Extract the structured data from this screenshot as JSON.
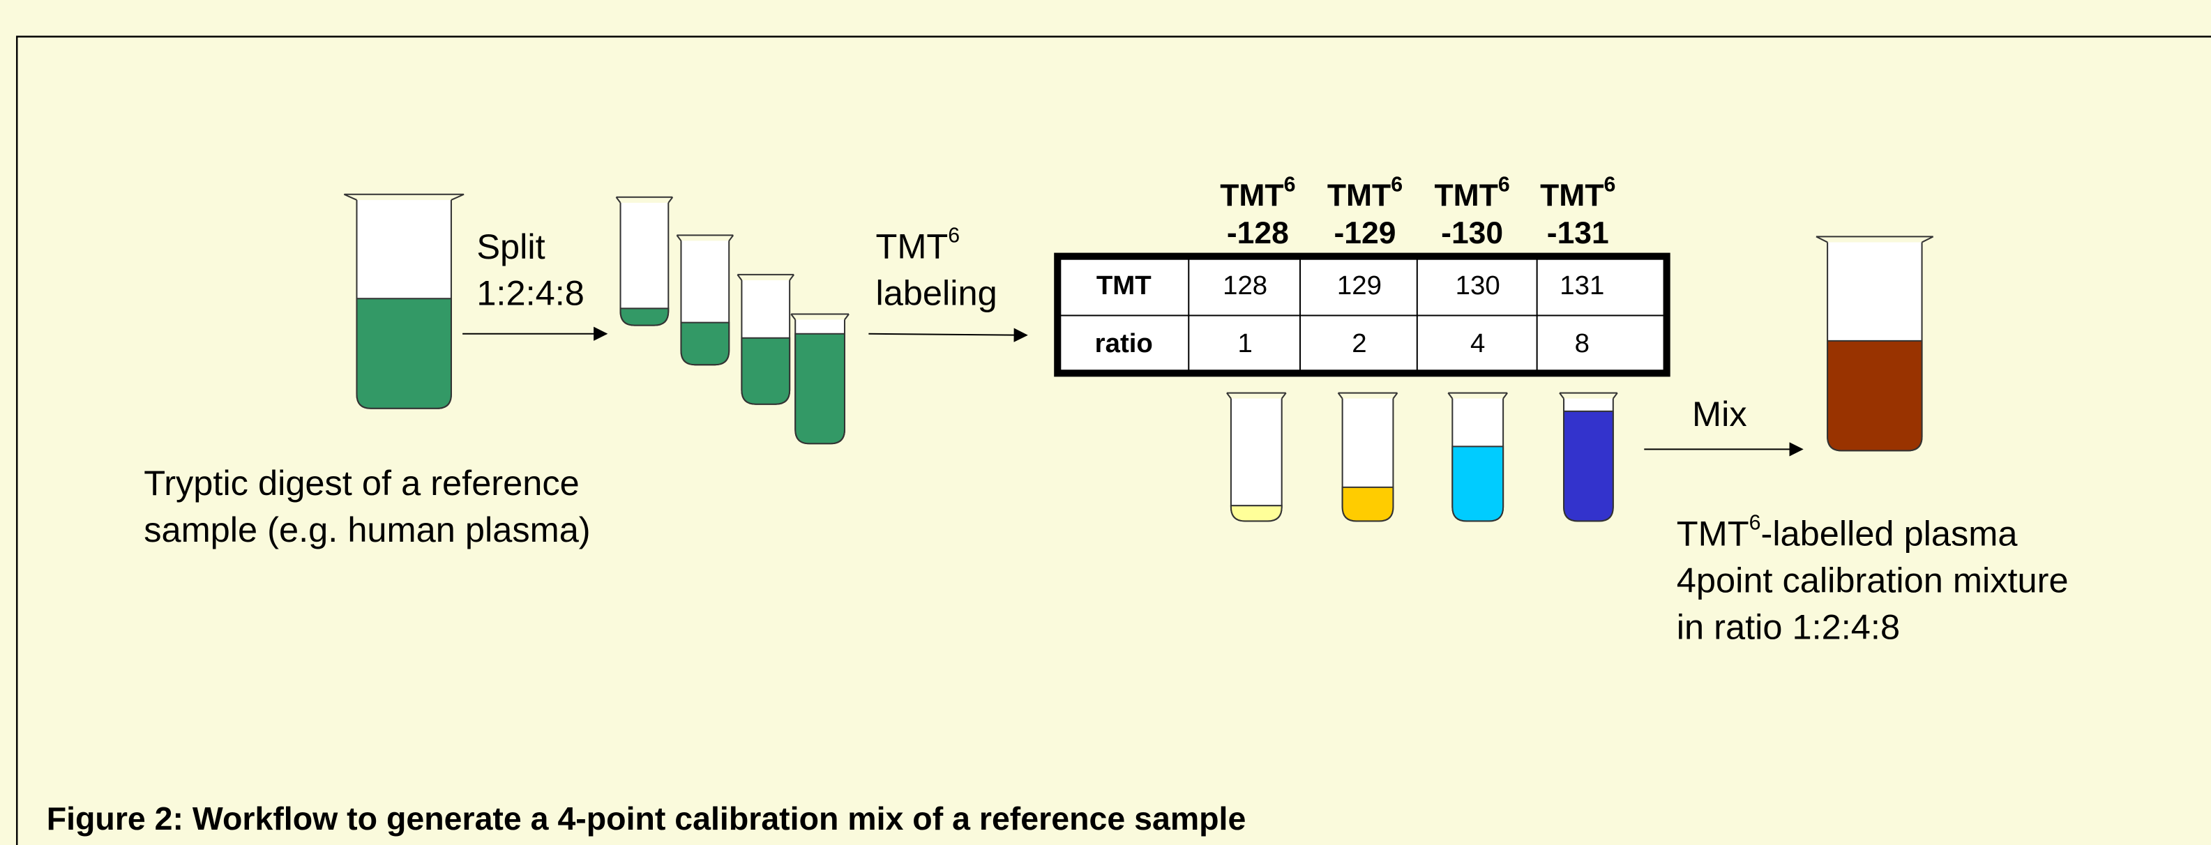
{
  "workflow": {
    "input_label": [
      "Tryptic digest of a reference",
      "sample (e.g. human plasma)"
    ],
    "split_label": [
      "Split",
      "1:2:4:8"
    ],
    "labeling_label": {
      "base": "TMT",
      "sup": "6",
      "line2": "labeling"
    },
    "channel_headers": [
      {
        "base": "TMT",
        "sup": "6",
        "suffix": "-128"
      },
      {
        "base": "TMT",
        "sup": "6",
        "suffix": "-129"
      },
      {
        "base": "TMT",
        "sup": "6",
        "suffix": "-130"
      },
      {
        "base": "TMT",
        "sup": "6",
        "suffix": "-131"
      }
    ],
    "table": {
      "rows": [
        [
          "TMT",
          "128",
          "129",
          "130",
          "131"
        ],
        [
          "ratio",
          "1",
          "2",
          "4",
          "8"
        ]
      ]
    },
    "mix_label": "Mix",
    "output_label": {
      "base": "TMT",
      "sup": "6",
      "rest": "-labelled plasma",
      "lines": [
        "4point calibration mixture",
        "in ratio 1:2:4:8"
      ]
    },
    "caption": "Figure 2: Workflow to generate a 4-point calibration mix of a reference sample"
  }
}
